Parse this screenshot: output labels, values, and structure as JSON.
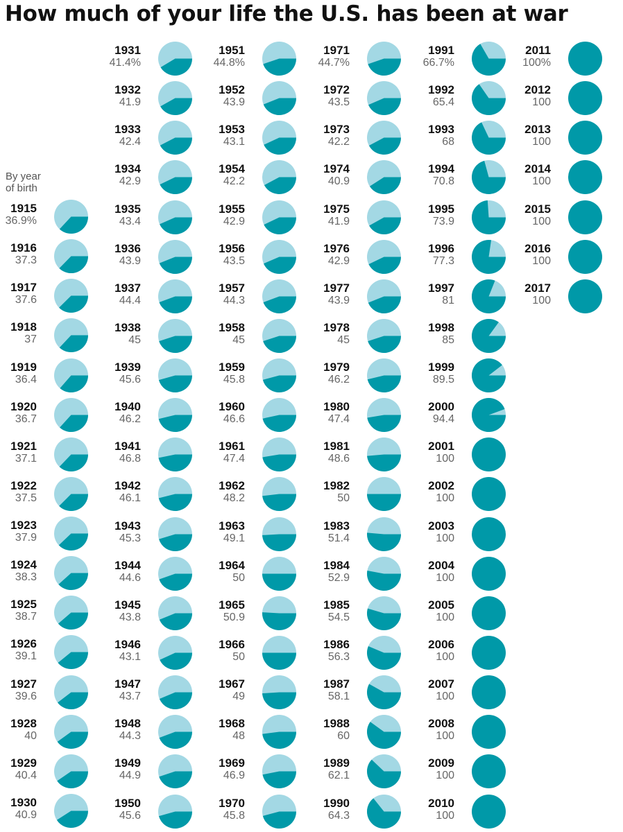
{
  "title": "How much of your life the U.S. has been at war",
  "legend": {
    "line1": "By year",
    "line2": "of birth"
  },
  "colors": {
    "war": "#0099a8",
    "peace": "#a3d8e4",
    "title": "#111111",
    "label": "#666666"
  },
  "chart_data": {
    "type": "pie",
    "title": "How much of your life the U.S. has been at war",
    "subtitle": "By year of birth",
    "unit": "%",
    "columns": [
      {
        "years": [
          "1915",
          "1916",
          "1917",
          "1918",
          "1919",
          "1920",
          "1921",
          "1922",
          "1923",
          "1924",
          "1925",
          "1926",
          "1927",
          "1928",
          "1929",
          "1930"
        ],
        "labels": [
          "36.9%",
          "37.3",
          "37.6",
          "37",
          "36.4",
          "36.7",
          "37.1",
          "37.5",
          "37.9",
          "38.3",
          "38.7",
          "39.1",
          "39.6",
          "40",
          "40.4",
          "40.9"
        ],
        "values": [
          36.9,
          37.3,
          37.6,
          37,
          36.4,
          36.7,
          37.1,
          37.5,
          37.9,
          38.3,
          38.7,
          39.1,
          39.6,
          40,
          40.4,
          40.9
        ]
      },
      {
        "years": [
          "1931",
          "1932",
          "1933",
          "1934",
          "1935",
          "1936",
          "1937",
          "1938",
          "1939",
          "1940",
          "1941",
          "1942",
          "1943",
          "1944",
          "1945",
          "1946",
          "1947",
          "1948",
          "1949",
          "1950"
        ],
        "labels": [
          "41.4%",
          "41.9",
          "42.4",
          "42.9",
          "43.4",
          "43.9",
          "44.4",
          "45",
          "45.6",
          "46.2",
          "46.8",
          "46.1",
          "45.3",
          "44.6",
          "43.8",
          "43.1",
          "43.7",
          "44.3",
          "44.9",
          "45.6"
        ],
        "values": [
          41.4,
          41.9,
          42.4,
          42.9,
          43.4,
          43.9,
          44.4,
          45,
          45.6,
          46.2,
          46.8,
          46.1,
          45.3,
          44.6,
          43.8,
          43.1,
          43.7,
          44.3,
          44.9,
          45.6
        ]
      },
      {
        "years": [
          "1951",
          "1952",
          "1953",
          "1954",
          "1955",
          "1956",
          "1957",
          "1958",
          "1959",
          "1960",
          "1961",
          "1962",
          "1963",
          "1964",
          "1965",
          "1966",
          "1967",
          "1968",
          "1969",
          "1970"
        ],
        "labels": [
          "44.8%",
          "43.9",
          "43.1",
          "42.2",
          "42.9",
          "43.5",
          "44.3",
          "45",
          "45.8",
          "46.6",
          "47.4",
          "48.2",
          "49.1",
          "50",
          "50.9",
          "50",
          "49",
          "48",
          "46.9",
          "45.8"
        ],
        "values": [
          44.8,
          43.9,
          43.1,
          42.2,
          42.9,
          43.5,
          44.3,
          45,
          45.8,
          46.6,
          47.4,
          48.2,
          49.1,
          50,
          50.9,
          50,
          49,
          48,
          46.9,
          45.8
        ]
      },
      {
        "years": [
          "1971",
          "1972",
          "1973",
          "1974",
          "1975",
          "1976",
          "1977",
          "1978",
          "1979",
          "1980",
          "1981",
          "1982",
          "1983",
          "1984",
          "1985",
          "1986",
          "1987",
          "1988",
          "1989",
          "1990"
        ],
        "labels": [
          "44.7%",
          "43.5",
          "42.2",
          "40.9",
          "41.9",
          "42.9",
          "43.9",
          "45",
          "46.2",
          "47.4",
          "48.6",
          "50",
          "51.4",
          "52.9",
          "54.5",
          "56.3",
          "58.1",
          "60",
          "62.1",
          "64.3"
        ],
        "values": [
          44.7,
          43.5,
          42.2,
          40.9,
          41.9,
          42.9,
          43.9,
          45,
          46.2,
          47.4,
          48.6,
          50,
          51.4,
          52.9,
          54.5,
          56.3,
          58.1,
          60,
          62.1,
          64.3
        ]
      },
      {
        "years": [
          "1991",
          "1992",
          "1993",
          "1994",
          "1995",
          "1996",
          "1997",
          "1998",
          "1999",
          "2000",
          "2001",
          "2002",
          "2003",
          "2004",
          "2005",
          "2006",
          "2007",
          "2008",
          "2009",
          "2010"
        ],
        "labels": [
          "66.7%",
          "65.4",
          "68",
          "70.8",
          "73.9",
          "77.3",
          "81",
          "85",
          "89.5",
          "94.4",
          "100",
          "100",
          "100",
          "100",
          "100",
          "100",
          "100",
          "100",
          "100",
          "100"
        ],
        "values": [
          66.7,
          65.4,
          68,
          70.8,
          73.9,
          77.3,
          81,
          85,
          89.5,
          94.4,
          100,
          100,
          100,
          100,
          100,
          100,
          100,
          100,
          100,
          100
        ]
      },
      {
        "years": [
          "2011",
          "2012",
          "2013",
          "2014",
          "2015",
          "2016",
          "2017"
        ],
        "labels": [
          "100%",
          "100",
          "100",
          "100",
          "100",
          "100",
          "100"
        ],
        "values": [
          100,
          100,
          100,
          100,
          100,
          100,
          100
        ]
      }
    ]
  }
}
